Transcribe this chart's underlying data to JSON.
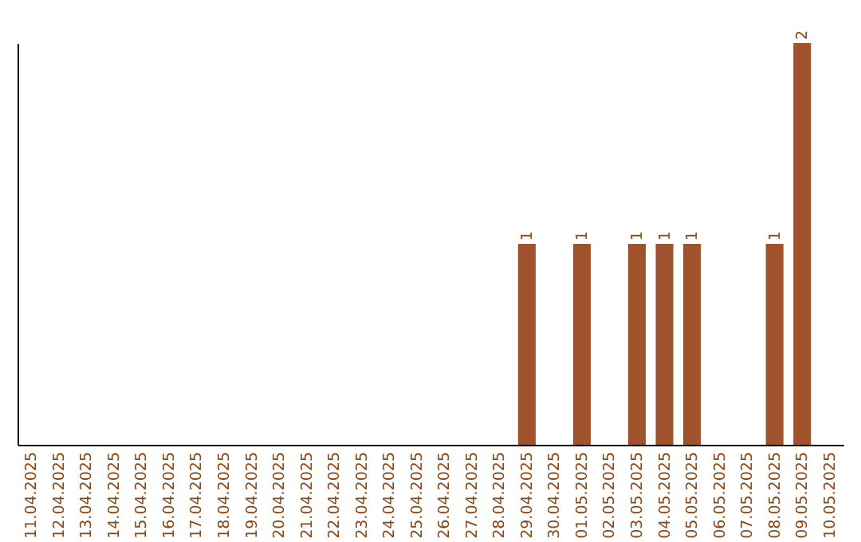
{
  "chart_data": {
    "type": "bar",
    "categories": [
      "11.04.2025",
      "12.04.2025",
      "13.04.2025",
      "14.04.2025",
      "15.04.2025",
      "16.04.2025",
      "17.04.2025",
      "18.04.2025",
      "19.04.2025",
      "20.04.2025",
      "21.04.2025",
      "22.04.2025",
      "23.04.2025",
      "24.04.2025",
      "25.04.2025",
      "26.04.2025",
      "27.04.2025",
      "28.04.2025",
      "29.04.2025",
      "30.04.2025",
      "01.05.2025",
      "02.05.2025",
      "03.05.2025",
      "04.05.2025",
      "05.05.2025",
      "06.05.2025",
      "07.05.2025",
      "08.05.2025",
      "09.05.2025",
      "10.05.2025"
    ],
    "values": [
      null,
      null,
      null,
      null,
      null,
      null,
      null,
      null,
      null,
      null,
      null,
      null,
      null,
      null,
      null,
      null,
      null,
      null,
      1,
      null,
      1,
      null,
      1,
      1,
      1,
      null,
      null,
      1,
      2,
      null
    ],
    "data_labels": true,
    "color": "#a0522d",
    "tick_labels": "x"
  }
}
